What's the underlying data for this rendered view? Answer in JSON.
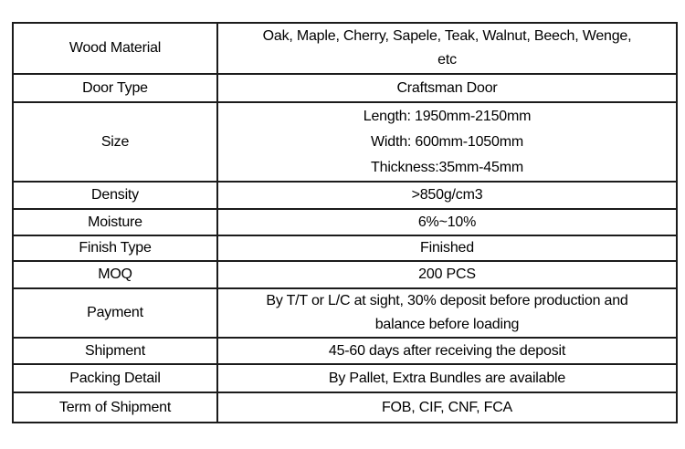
{
  "page": {
    "background_color": "#ffffff",
    "border_color": "#1b1b1b",
    "text_color": "#000000"
  },
  "table": {
    "rows": [
      {
        "label": "Wood Material",
        "lines": [
          "Oak, Maple, Cherry, Sapele, Teak, Walnut, Beech, Wenge,",
          "etc"
        ]
      },
      {
        "label": "Door Type",
        "lines": [
          "Craftsman Door"
        ]
      },
      {
        "label": "Size",
        "lines": [
          "Length: 1950mm-2150mm",
          "Width: 600mm-1050mm",
          "Thickness:35mm-45mm"
        ]
      },
      {
        "label": "Density",
        "lines": [
          ">850g/cm3"
        ]
      },
      {
        "label": "Moisture",
        "lines": [
          "6%~10%"
        ]
      },
      {
        "label": "Finish Type",
        "lines": [
          "Finished"
        ]
      },
      {
        "label": "MOQ",
        "lines": [
          "200 PCS"
        ]
      },
      {
        "label": "Payment",
        "lines": [
          "By T/T or L/C at sight, 30% deposit before production and",
          "balance before loading"
        ]
      },
      {
        "label": "Shipment",
        "lines": [
          "45-60 days after receiving the deposit"
        ]
      },
      {
        "label": "Packing Detail",
        "lines": [
          "By Pallet, Extra Bundles are available"
        ]
      },
      {
        "label": "Term of Shipment",
        "lines": [
          "FOB, CIF, CNF, FCA"
        ]
      }
    ]
  }
}
